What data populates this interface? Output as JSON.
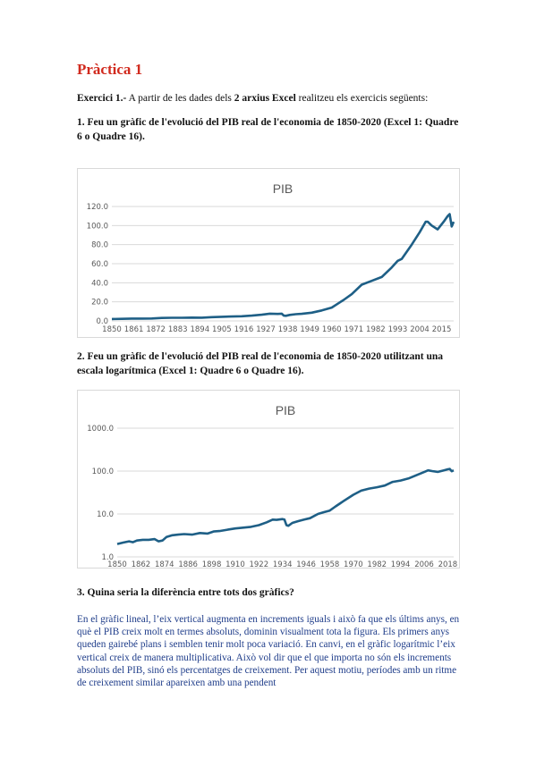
{
  "title": "Pràctica 1",
  "intro": {
    "lead": "Exercici 1.-",
    "text1": " A partir de les dades dels ",
    "bold": "2 arxius Excel",
    "text2": " realitzeu els exercicis següents:"
  },
  "q1": "1. Feu un gràfic de l'evolució del PIB real de l'economia de 1850-2020 (Excel 1: Quadre 6 o Quadre 16).",
  "q2": "2. Feu un gràfic de l'evolució del PIB real de l'economia de 1850-2020 utilitzant una escala logarítmica (Excel 1: Quadre 6 o Quadre 16).",
  "q3": "3. Quina seria la diferència entre tots dos gràfics?",
  "answer": "En el gràfic lineal, l’eix vertical augmenta en increments iguals i això fa que els últims anys, en què el PIB creix molt en termes absoluts, dominin visualment tota la figura. Els primers anys queden gairebé plans i semblen tenir molt poca variació. En canvi, en el gràfic logarítmic l’eix vertical creix de manera multiplicativa. Això vol dir que el que importa no són els increments absoluts del PIB, sinó els percentatges de creixement. Per aquest motiu, períodes amb un ritme de creixement similar apareixen amb una pendent",
  "chart_data": [
    {
      "type": "line",
      "title": "PIB",
      "scale": "linear",
      "ylim": [
        0,
        120
      ],
      "y_ticks": [
        "0.0",
        "20.0",
        "40.0",
        "60.0",
        "80.0",
        "100.0",
        "120.0"
      ],
      "x_ticks": [
        "1850",
        "1861",
        "1872",
        "1883",
        "1894",
        "1905",
        "1916",
        "1927",
        "1938",
        "1949",
        "1960",
        "1971",
        "1982",
        "1993",
        "2004",
        "2015"
      ],
      "grid": true,
      "series": [
        {
          "color": "#1e5f86",
          "x": [
            1850,
            1855,
            1860,
            1865,
            1870,
            1875,
            1880,
            1885,
            1890,
            1895,
            1900,
            1905,
            1910,
            1915,
            1920,
            1925,
            1929,
            1933,
            1935,
            1936,
            1937,
            1939,
            1942,
            1945,
            1950,
            1955,
            1960,
            1963,
            1966,
            1970,
            1973,
            1975,
            1980,
            1985,
            1990,
            1993,
            1995,
            2000,
            2004,
            2007,
            2008,
            2010,
            2013,
            2016,
            2018,
            2019,
            2020,
            2021
          ],
          "y": [
            2,
            2.2,
            2.4,
            2.4,
            2.5,
            3.1,
            3.3,
            3.3,
            3.5,
            3.4,
            3.9,
            4.3,
            4.6,
            4.9,
            5.5,
            6.5,
            7.6,
            7.3,
            7.6,
            5.5,
            5.3,
            6.3,
            7,
            7.4,
            8.6,
            11,
            14,
            18,
            22,
            28,
            34,
            38,
            42,
            46,
            56,
            63,
            65,
            80,
            93,
            104,
            104,
            100,
            96,
            104,
            110,
            112,
            99,
            104
          ]
        }
      ]
    },
    {
      "type": "line",
      "title": "PIB",
      "scale": "log",
      "ylim": [
        1,
        1000
      ],
      "y_ticks": [
        "1.0",
        "10.0",
        "100.0",
        "1000.0"
      ],
      "x_ticks": [
        "1850",
        "1862",
        "1874",
        "1886",
        "1898",
        "1910",
        "1922",
        "1934",
        "1946",
        "1958",
        "1970",
        "1982",
        "1994",
        "2006",
        "2018"
      ],
      "grid": true,
      "series": [
        {
          "color": "#1e5f86",
          "x": [
            1850,
            1853,
            1856,
            1858,
            1860,
            1863,
            1866,
            1869,
            1871,
            1873,
            1875,
            1878,
            1881,
            1884,
            1888,
            1892,
            1896,
            1899,
            1902,
            1906,
            1910,
            1914,
            1918,
            1922,
            1926,
            1929,
            1931,
            1934,
            1935,
            1936,
            1937,
            1939,
            1942,
            1945,
            1948,
            1952,
            1955,
            1958,
            1961,
            1965,
            1970,
            1974,
            1978,
            1982,
            1986,
            1990,
            1994,
            1998,
            2002,
            2006,
            2008,
            2010,
            2013,
            2016,
            2018,
            2019,
            2020,
            2021
          ],
          "y": [
            2,
            2.15,
            2.3,
            2.2,
            2.4,
            2.5,
            2.5,
            2.6,
            2.3,
            2.4,
            2.9,
            3.2,
            3.3,
            3.4,
            3.3,
            3.6,
            3.5,
            3.9,
            4.0,
            4.3,
            4.6,
            4.8,
            5.0,
            5.5,
            6.4,
            7.4,
            7.3,
            7.6,
            7.4,
            5.5,
            5.3,
            6.2,
            6.8,
            7.4,
            8.0,
            10,
            11,
            12,
            15,
            20,
            28,
            35,
            39,
            42,
            46,
            56,
            60,
            67,
            80,
            95,
            104,
            100,
            96,
            104,
            110,
            112,
            99,
            104
          ]
        }
      ]
    }
  ]
}
